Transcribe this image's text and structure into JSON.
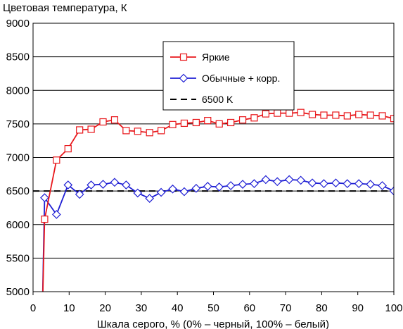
{
  "chart_data": {
    "type": "line",
    "title": "",
    "ylabel": "Цветовая температура, К",
    "xlabel": "Шкала серого, % (0% – черный, 100% – белый)",
    "xlim": [
      0,
      100
    ],
    "ylim": [
      5000,
      9000
    ],
    "xticks": [
      0,
      10,
      20,
      30,
      40,
      50,
      60,
      70,
      80,
      90,
      100
    ],
    "yticks": [
      5000,
      5500,
      6000,
      6500,
      7000,
      7500,
      8000,
      8500,
      9000
    ],
    "grid": true,
    "legend_position": "top-center",
    "series": [
      {
        "name": "Яркие",
        "color": "#e8171b",
        "marker": "square",
        "x": [
          2.5,
          3.2,
          6.5,
          9.7,
          12.9,
          16.1,
          19.4,
          22.6,
          25.8,
          29.0,
          32.3,
          35.5,
          38.7,
          41.9,
          45.2,
          48.4,
          51.6,
          54.8,
          58.1,
          61.3,
          64.5,
          67.7,
          71.0,
          74.2,
          77.4,
          80.6,
          83.9,
          87.1,
          90.3,
          93.5,
          96.8,
          100
        ],
        "y": [
          4500,
          6080,
          6960,
          7130,
          7410,
          7420,
          7530,
          7560,
          7400,
          7390,
          7370,
          7400,
          7490,
          7510,
          7520,
          7550,
          7500,
          7520,
          7560,
          7590,
          7650,
          7660,
          7660,
          7670,
          7640,
          7630,
          7630,
          7620,
          7640,
          7630,
          7620,
          7580
        ]
      },
      {
        "name": "Обычные + корр.",
        "color": "#1f1fd4",
        "marker": "diamond",
        "x": [
          2.5,
          3.2,
          6.5,
          9.7,
          12.9,
          16.1,
          19.4,
          22.6,
          25.8,
          29.0,
          32.3,
          35.5,
          38.7,
          41.9,
          45.2,
          48.4,
          51.6,
          54.8,
          58.1,
          61.3,
          64.5,
          67.7,
          71.0,
          74.2,
          77.4,
          80.6,
          83.9,
          87.1,
          90.3,
          93.5,
          96.8,
          100
        ],
        "y": [
          4500,
          6400,
          6150,
          6590,
          6450,
          6590,
          6600,
          6630,
          6590,
          6470,
          6390,
          6480,
          6530,
          6490,
          6540,
          6570,
          6560,
          6580,
          6600,
          6610,
          6670,
          6640,
          6670,
          6660,
          6620,
          6610,
          6620,
          6610,
          6610,
          6600,
          6580,
          6500
        ]
      },
      {
        "name": "6500 K",
        "color": "#000000",
        "marker": "none",
        "dash": true,
        "x": [
          0,
          100
        ],
        "y": [
          6500,
          6500
        ]
      }
    ]
  }
}
